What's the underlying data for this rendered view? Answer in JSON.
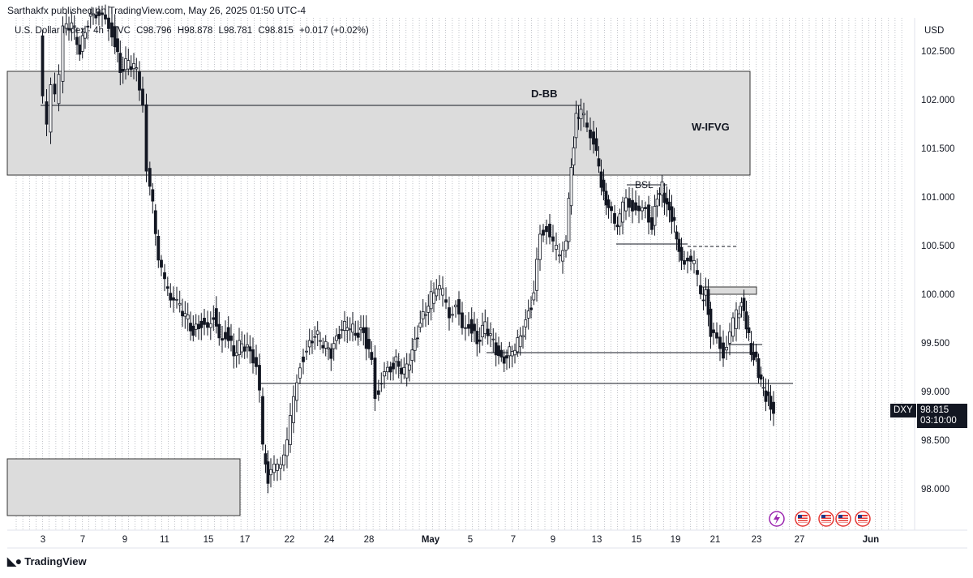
{
  "header": {
    "publisher": "Sarthakfx published on TradingView.com, May 26, 2025 01:50 UTC-4"
  },
  "legend": {
    "symbol": "U.S. Dollar Index · 4h · TVC",
    "close_prefix": "C98.796",
    "high": "H98.878",
    "low": "L98.781",
    "close": "C98.815",
    "change": "+0.017 (+0.02%)"
  },
  "price_axis": {
    "currency": "USD",
    "ticks": [
      "102.500",
      "102.000",
      "101.500",
      "101.000",
      "100.500",
      "100.000",
      "99.500",
      "99.000",
      "98.500",
      "98.000"
    ],
    "symbol_tag": "DXY",
    "last_price": "98.815",
    "countdown": "03:10:00"
  },
  "time_axis": {
    "ticks": [
      "3",
      "7",
      "9",
      "11",
      "15",
      "17",
      "22",
      "24",
      "28",
      "May",
      "5",
      "7",
      "9",
      "13",
      "15",
      "19",
      "21",
      "23",
      "27",
      "Jun"
    ]
  },
  "annotations": {
    "dbb": "D-BB",
    "wifvg": "W-IFVG",
    "bsl": "BSL"
  },
  "event_icons": [
    "lightning-icon",
    "us-flag-icon",
    "us-flag-icon",
    "us-flag-icon",
    "us-flag-icon"
  ],
  "footer": {
    "brand": "TradingView"
  },
  "colors": {
    "zone_fill": "#dcdcdc",
    "zone_border": "#333333",
    "candle": "#131722",
    "grid": "#bfc2c8"
  }
}
